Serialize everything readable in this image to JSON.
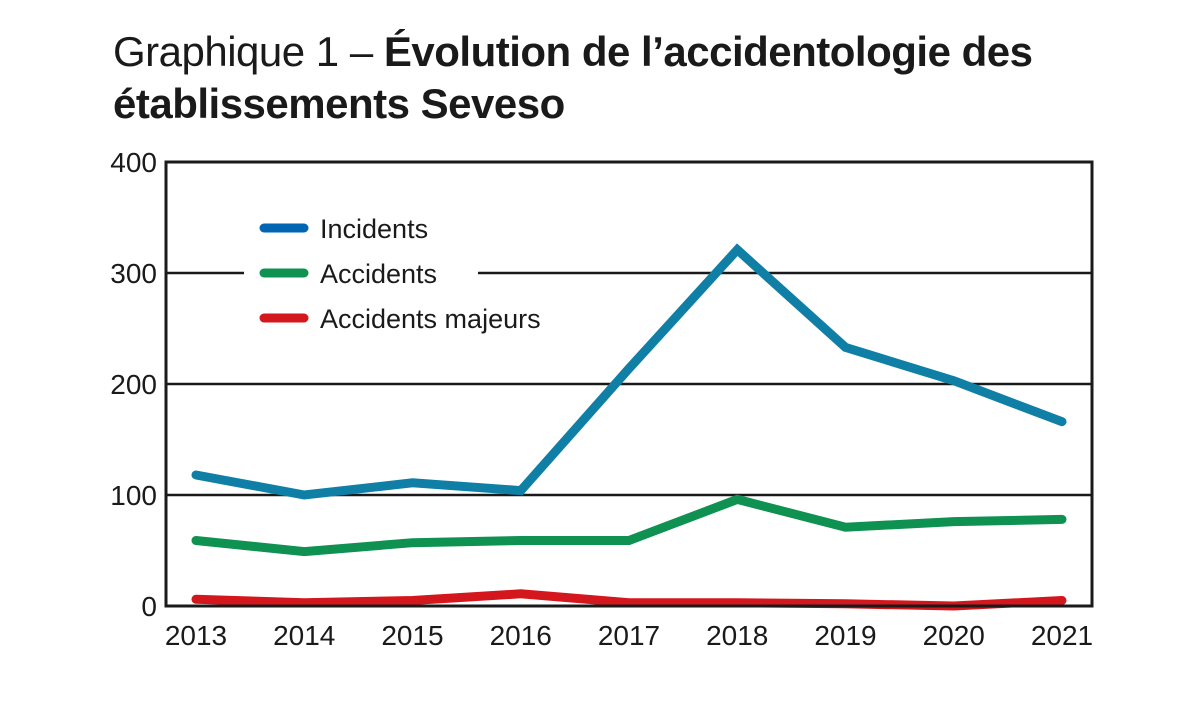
{
  "chart_data": {
    "type": "line",
    "title_prefix": "Graphique 1 – ",
    "title": "Évolution de l’accidentologie des établissements Seveso",
    "xlabel": "",
    "ylabel": "",
    "x": [
      "2013",
      "2014",
      "2015",
      "2016",
      "2017",
      "2018",
      "2019",
      "2020",
      "2021"
    ],
    "ylim": [
      0,
      400
    ],
    "yticks": [
      0,
      100,
      200,
      300,
      400
    ],
    "grid": "horizontal",
    "legend_position": "top-left",
    "series": [
      {
        "name": "Incidents",
        "color": "#0f7fa6",
        "values": [
          118,
          100,
          111,
          104,
          214,
          321,
          233,
          203,
          166
        ]
      },
      {
        "name": "Accidents",
        "color": "#0e9151",
        "values": [
          59,
          49,
          57,
          59,
          59,
          96,
          71,
          76,
          78
        ]
      },
      {
        "name": "Accidents majeurs",
        "color": "#d4161d",
        "values": [
          6,
          3,
          5,
          11,
          3,
          3,
          2,
          0,
          5
        ]
      }
    ],
    "legend_swatch_colors": [
      "#0066b3",
      "#0e9151",
      "#d4161d"
    ]
  }
}
